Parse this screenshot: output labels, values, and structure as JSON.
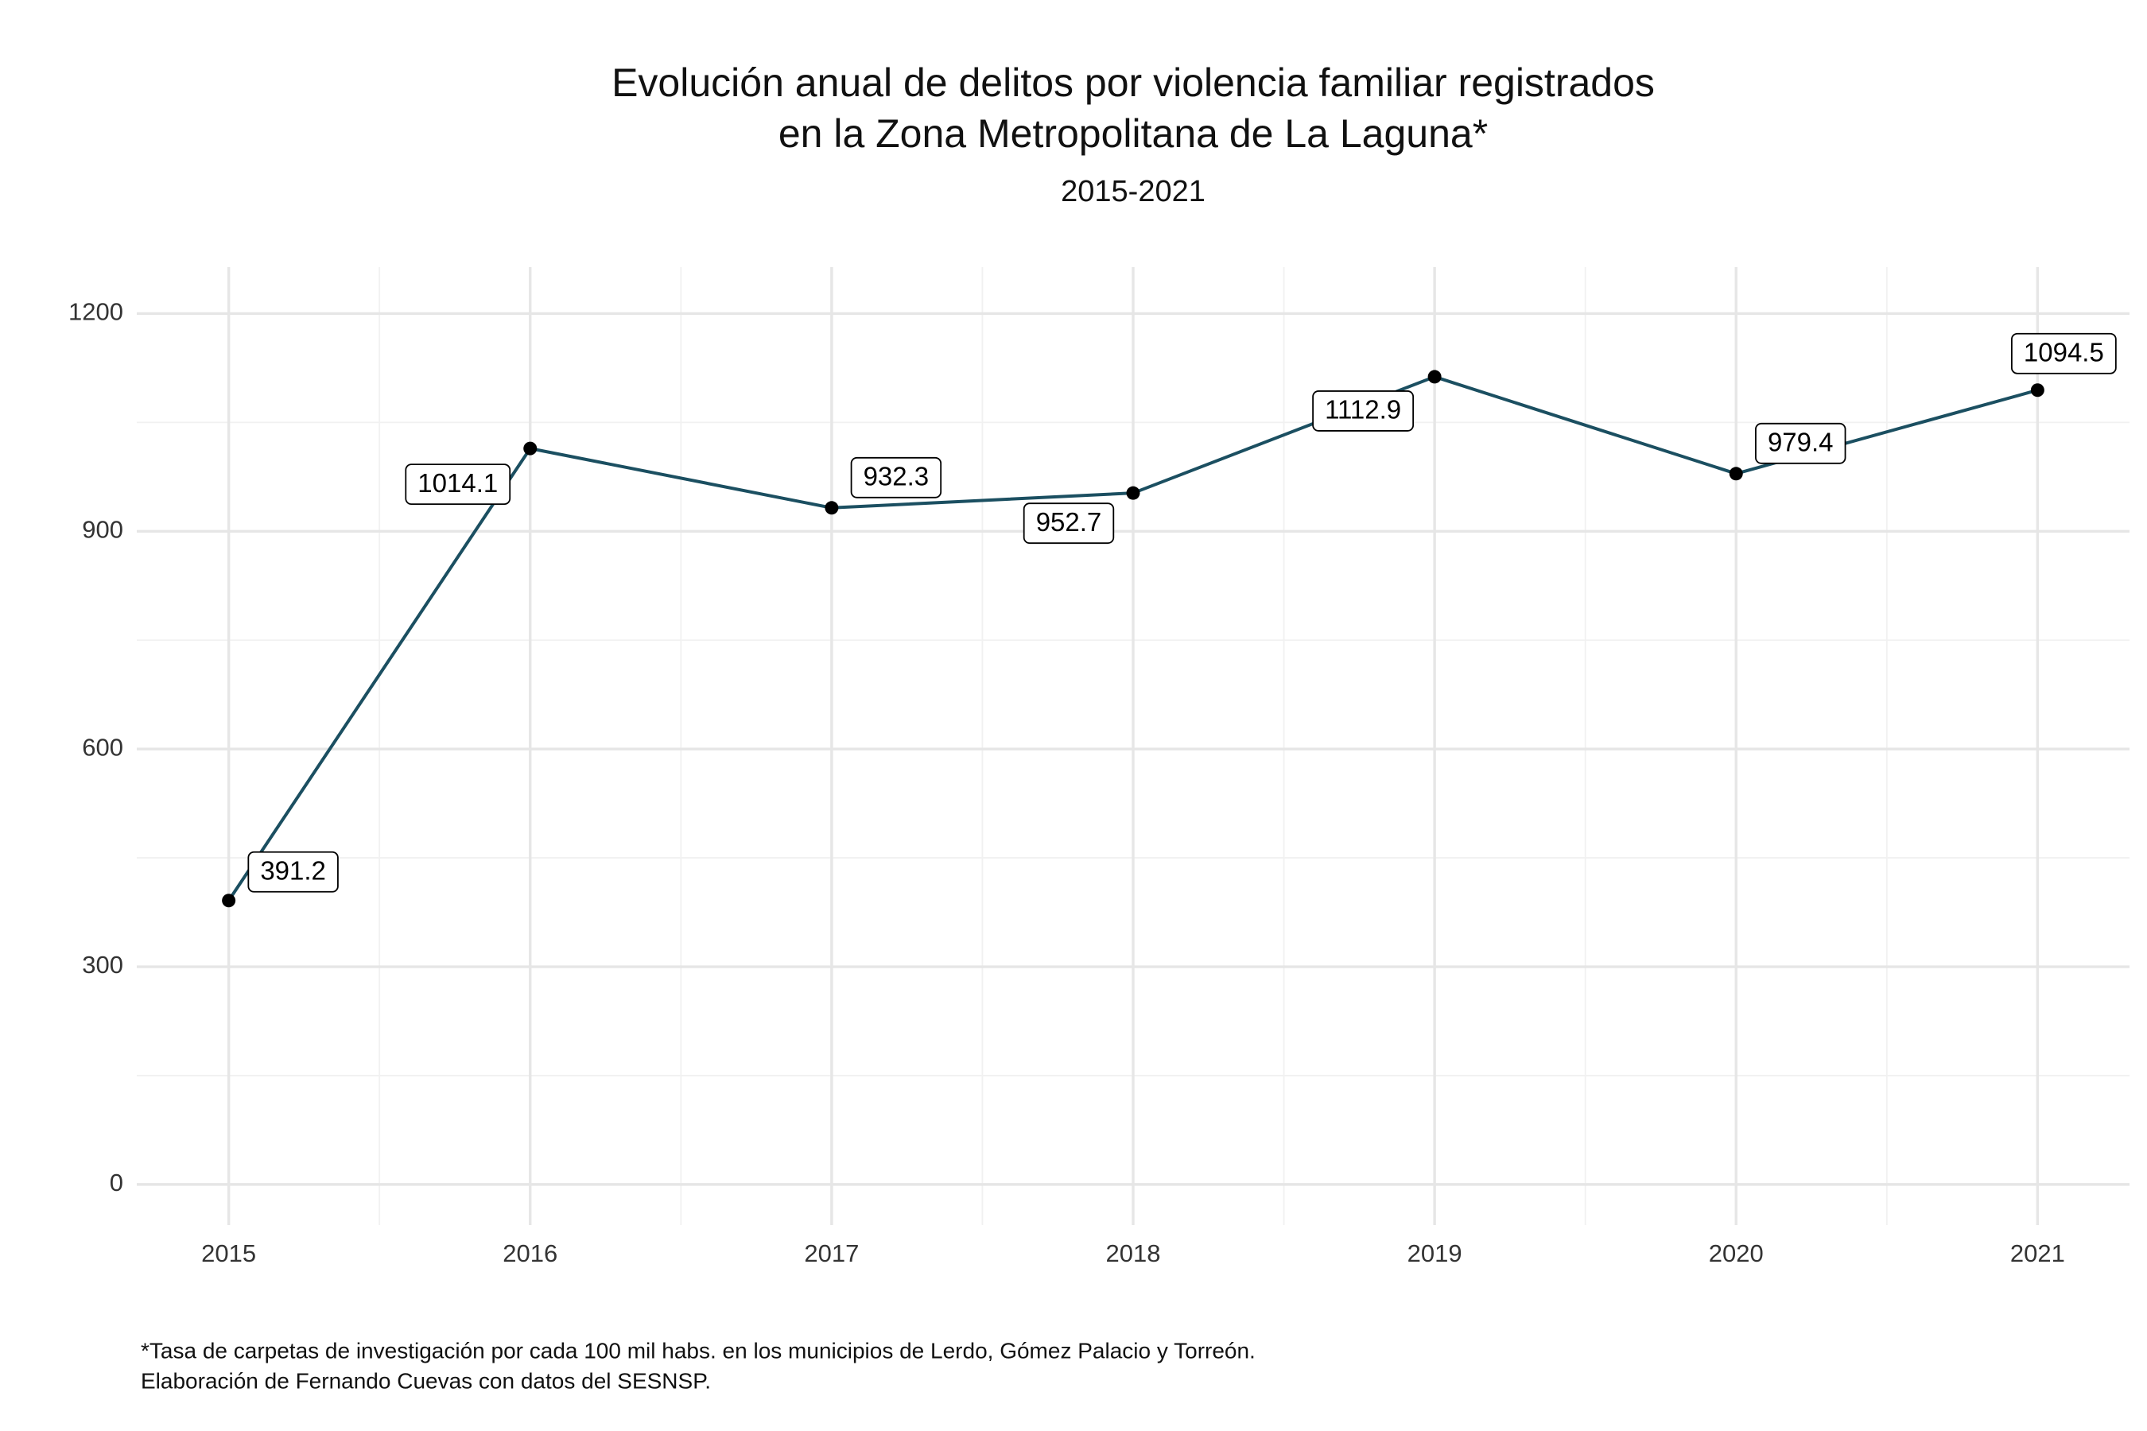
{
  "chart_data": {
    "type": "line",
    "title": [
      "Evolución anual de delitos por violencia familiar registrados",
      "en la Zona Metropolitana de La Laguna*"
    ],
    "subtitle": "2015-2021",
    "xlabel": "",
    "ylabel": "",
    "x": [
      2015,
      2016,
      2017,
      2018,
      2019,
      2020,
      2021
    ],
    "series": [
      {
        "values": [
          391.2,
          1014.1,
          932.3,
          952.7,
          1112.9,
          979.4,
          1094.5
        ],
        "line_color": "#1b4f61",
        "point_color": "#000000"
      }
    ],
    "xticks": [
      2015,
      2016,
      2017,
      2018,
      2019,
      2020,
      2021
    ],
    "yticks": [
      0,
      300,
      600,
      900,
      1200
    ],
    "xlim": [
      2014.695,
      2021.305
    ],
    "ylim": [
      -56,
      1264
    ],
    "grid": true,
    "legend": "none",
    "data_labels": true,
    "caption": [
      "*Tasa de carpetas de investigación por cada 100 mil habs. en los municipios de Lerdo, Gómez Palacio y Torreón.",
      "Elaboración de Fernando Cuevas con datos del SESNSP."
    ],
    "colors": {
      "background": "#ffffff",
      "major_grid": "#e6e6e6",
      "minor_grid": "#f1f1f1"
    }
  }
}
